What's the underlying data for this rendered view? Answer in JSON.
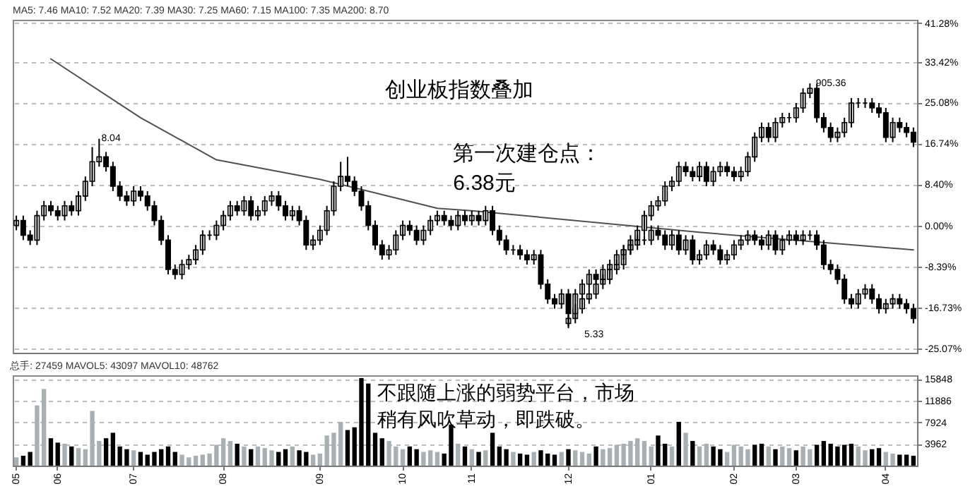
{
  "chart_data": [
    {
      "type": "candlestick",
      "title": "MA5: 7.46 MA10: 7.52 MA20: 7.39 MA30: 7.25 MA60: 7.15 MA100: 7.35 MA200: 8.70",
      "categories": [
        "05",
        null,
        null,
        null,
        null,
        null,
        "06",
        null,
        null,
        null,
        null,
        null,
        null,
        null,
        null,
        null,
        null,
        "07",
        null,
        null,
        null,
        null,
        null,
        null,
        null,
        null,
        null,
        null,
        null,
        null,
        "08",
        null,
        null,
        null,
        null,
        null,
        null,
        null,
        null,
        null,
        null,
        null,
        null,
        null,
        "09",
        null,
        null,
        null,
        null,
        null,
        null,
        null,
        null,
        null,
        null,
        null,
        "10",
        null,
        null,
        null,
        null,
        null,
        null,
        null,
        null,
        null,
        "11",
        null,
        null,
        null,
        null,
        null,
        null,
        null,
        null,
        null,
        null,
        null,
        null,
        null,
        "12",
        null,
        null,
        null,
        null,
        null,
        null,
        null,
        null,
        null,
        null,
        null,
        "01",
        null,
        null,
        null,
        null,
        null,
        null,
        null,
        null,
        null,
        null,
        null,
        "02",
        null,
        null,
        null,
        null,
        null,
        null,
        null,
        null,
        "03",
        null,
        null,
        null,
        null,
        null,
        null,
        null,
        null,
        null,
        null,
        null,
        null,
        "04",
        null,
        null,
        null,
        null
      ],
      "ylim": [
        -26,
        42
      ],
      "yticks": [
        {
          "value": 41.28,
          "label": "41.28%"
        },
        {
          "value": 33.42,
          "label": "33.42%"
        },
        {
          "value": 25.08,
          "label": "25.08%"
        },
        {
          "value": 16.74,
          "label": "16.74%"
        },
        {
          "value": 8.4,
          "label": "8.40%"
        },
        {
          "value": 0,
          "label": "0.00%"
        },
        {
          "value": -8.39,
          "label": "-8.39%"
        },
        {
          "value": -16.73,
          "label": "-16.73%"
        },
        {
          "value": -25.07,
          "label": "-25.07%"
        }
      ],
      "grid": "y",
      "tick_labels": "y",
      "annotations": [
        "创业板指数叠加",
        "第一次建仓点：",
        "6.38元",
        "8.04",
        "5.33",
        "905.36"
      ],
      "series": [
        {
          "type": "line",
          "color": "#505050",
          "values": [
            null,
            null,
            null,
            null,
            null,
            34,
            null,
            null,
            null,
            null,
            null,
            null,
            null,
            null,
            null,
            null,
            null,
            null,
            22,
            null,
            null,
            null,
            null,
            null,
            null,
            null,
            null,
            null,
            null,
            13.4,
            null,
            null,
            null,
            null,
            null,
            null,
            null,
            null,
            null,
            null,
            null,
            null,
            null,
            null,
            9.4,
            null,
            null,
            null,
            null,
            null,
            null,
            7,
            null,
            null,
            null,
            null,
            null,
            null,
            null,
            null,
            null,
            3.5,
            null,
            null,
            null,
            null,
            3,
            null,
            null,
            null,
            null,
            null,
            null,
            null,
            null,
            null,
            null,
            null,
            null,
            null,
            null,
            null,
            null,
            null,
            null,
            null,
            null,
            null,
            null,
            null,
            null,
            null,
            null,
            null,
            null,
            null,
            null,
            null,
            null,
            -1.4,
            null,
            null,
            null,
            null,
            null,
            null,
            null,
            null,
            null,
            null,
            null,
            null,
            null,
            null,
            null,
            null,
            null,
            null,
            null,
            null,
            null,
            null,
            null,
            null,
            null,
            null,
            null,
            null,
            null,
            null,
            -5
          ]
        },
        {
          "color": "#000000",
          "ohlc": [
            null,
            null,
            null,
            null,
            null,
            null,
            null,
            null,
            null,
            null,
            null,
            null,
            null,
            null,
            null,
            null,
            null,
            null,
            null,
            null,
            null,
            null,
            null,
            null,
            null,
            null,
            null,
            null,
            null,
            null,
            null,
            null,
            null,
            null,
            null,
            null,
            null,
            null,
            null,
            null,
            null,
            null,
            null,
            null,
            null,
            null,
            null,
            null,
            null,
            null,
            null,
            null,
            null,
            null,
            null,
            null,
            null,
            null,
            null,
            null,
            null,
            null,
            null,
            null,
            null,
            null,
            null,
            null,
            null,
            null,
            null,
            null,
            null,
            null,
            null,
            null,
            null,
            null,
            null,
            null,
            [
              -20,
              -18,
              -21,
              -19
            ],
            [
              -19,
              -16,
              -20,
              -17
            ],
            [
              -17,
              -14,
              -18,
              -15
            ],
            [
              -15,
              -13,
              -16,
              -14
            ],
            [
              -14,
              -11,
              -15,
              -12
            ],
            [
              -12,
              -10,
              -13,
              -11
            ],
            [
              -11,
              -8,
              -12,
              -9
            ],
            [
              -9,
              -7,
              -10,
              -8
            ],
            [
              -8,
              -4,
              -9,
              -5
            ],
            [
              -5,
              -2,
              -6,
              -3
            ],
            [
              -3,
              0,
              -4,
              -1
            ],
            [
              -1,
              3,
              -2,
              2
            ],
            [
              2,
              5,
              1,
              4
            ],
            [
              4,
              6,
              3,
              5
            ],
            [
              5,
              9,
              4,
              8
            ],
            [
              8,
              10,
              7,
              9
            ],
            [
              9,
              13,
              8,
              12
            ],
            [
              12,
              13,
              10,
              11
            ],
            [
              11,
              12,
              9,
              10
            ],
            [
              10,
              13,
              9,
              12
            ],
            [
              12,
              13,
              8,
              9
            ],
            [
              9,
              12,
              8,
              11
            ],
            [
              11,
              13,
              10,
              12
            ],
            [
              12,
              13,
              10,
              11
            ],
            [
              11,
              12,
              9,
              10
            ],
            [
              10,
              12,
              9,
              11
            ],
            [
              11,
              15,
              10,
              14
            ],
            [
              14,
              19,
              13,
              18
            ],
            [
              18,
              21,
              17,
              20
            ],
            [
              20,
              21,
              17,
              18
            ],
            [
              18,
              22,
              17,
              21
            ],
            [
              21,
              23,
              20,
              22
            ],
            [
              22,
              23,
              21,
              22
            ],
            [
              22,
              25,
              21,
              24
            ],
            [
              24,
              28,
              23,
              27
            ],
            [
              27,
              29,
              26,
              28
            ],
            [
              28,
              29,
              21,
              22
            ],
            [
              22,
              23,
              19,
              20
            ],
            [
              20,
              21,
              17,
              18
            ],
            [
              18,
              20,
              17,
              19
            ],
            [
              19,
              22,
              18,
              21
            ],
            [
              21,
              26,
              20,
              25
            ],
            [
              25,
              26,
              24,
              25
            ],
            [
              25,
              26,
              24,
              25
            ],
            [
              25,
              26,
              23,
              24
            ],
            [
              24,
              25,
              22,
              23
            ],
            [
              23,
              24,
              17,
              18
            ],
            [
              18,
              22,
              17,
              21
            ],
            [
              21,
              22,
              19,
              20
            ],
            [
              20,
              21,
              18,
              19
            ],
            [
              19,
              20,
              16,
              17
            ]
          ]
        },
        {
          "color": "#000000",
          "ohlc": [
            [
              0,
              2,
              -1,
              1
            ],
            [
              1,
              2,
              -3,
              -2
            ],
            [
              -2,
              -1,
              -4,
              -3
            ],
            [
              -3,
              3,
              -4,
              2
            ],
            [
              2,
              5,
              1,
              4
            ],
            [
              4,
              5,
              2,
              3
            ],
            [
              3,
              4,
              1,
              2
            ],
            [
              2,
              5,
              1,
              4
            ],
            [
              4,
              5,
              2,
              3
            ],
            [
              3,
              7,
              2,
              6
            ],
            [
              6,
              10,
              5,
              9
            ],
            [
              9,
              16,
              8,
              13
            ],
            [
              13,
              17.7,
              12,
              14
            ],
            [
              14,
              15,
              11,
              12
            ],
            [
              12,
              13,
              7,
              8
            ],
            [
              8,
              9,
              5,
              6
            ],
            [
              6,
              7,
              4,
              5
            ],
            [
              5,
              8,
              4,
              7
            ],
            [
              7,
              8,
              5,
              6
            ],
            [
              6,
              7,
              3,
              4
            ],
            [
              4,
              5,
              0,
              1
            ],
            [
              1,
              2,
              -4,
              -3
            ],
            [
              -3,
              -2,
              -10,
              -9
            ],
            [
              -9,
              -8,
              -11,
              -10
            ],
            [
              -10,
              -7,
              -11,
              -8
            ],
            [
              -8,
              -6,
              -9,
              -7
            ],
            [
              -7,
              -4,
              -8,
              -5
            ],
            [
              -5,
              -1,
              -6,
              -2
            ],
            [
              -2,
              -1,
              -3,
              -2
            ],
            [
              -2,
              1,
              -3,
              0
            ],
            [
              0,
              3,
              -1,
              2
            ],
            [
              2,
              5,
              1,
              4
            ],
            [
              4,
              5,
              2,
              3
            ],
            [
              3,
              6,
              2,
              5
            ],
            [
              5,
              6,
              1,
              2
            ],
            [
              2,
              4,
              1,
              3
            ],
            [
              3,
              6,
              2,
              5
            ],
            [
              5,
              7,
              4,
              6
            ],
            [
              6,
              7,
              3,
              4
            ],
            [
              4,
              5,
              1,
              2
            ],
            [
              2,
              4,
              1,
              3
            ],
            [
              3,
              4,
              0,
              1
            ],
            [
              1,
              2,
              -5,
              -4
            ],
            [
              -4,
              -2,
              -5,
              -3
            ],
            [
              -3,
              0,
              -4,
              -1
            ],
            [
              -1,
              4,
              -2,
              3
            ],
            [
              3,
              9,
              2,
              8
            ],
            [
              8,
              13,
              7,
              10
            ],
            [
              10,
              14,
              8,
              9
            ],
            [
              9,
              10,
              6,
              7
            ],
            [
              7,
              8,
              3,
              4
            ],
            [
              4,
              5,
              -1,
              0
            ],
            [
              0,
              1,
              -5,
              -4
            ],
            [
              -4,
              -3,
              -7,
              -6
            ],
            [
              -6,
              -4,
              -7,
              -5
            ],
            [
              -5,
              -1,
              -6,
              -2
            ],
            [
              -2,
              1,
              -3,
              0
            ],
            [
              0,
              1,
              -2,
              -1
            ],
            [
              -1,
              0,
              -4,
              -3
            ],
            [
              -3,
              0,
              -4,
              -1
            ],
            [
              -1,
              2,
              -2,
              1
            ],
            [
              1,
              3,
              0,
              2
            ],
            [
              2,
              3,
              0,
              1
            ],
            [
              1,
              2,
              -1,
              0
            ],
            [
              0,
              3,
              -1,
              2
            ],
            [
              2,
              3,
              0,
              1
            ],
            [
              1,
              3,
              0,
              2
            ],
            [
              2,
              3,
              0,
              1
            ],
            [
              1,
              4,
              0,
              3
            ],
            [
              3,
              4,
              -2,
              -1
            ],
            [
              -1,
              0,
              -4,
              -3
            ],
            [
              -3,
              -2,
              -6,
              -5
            ],
            [
              -5,
              -4,
              -6,
              -5
            ],
            [
              -5,
              -4,
              -7,
              -6
            ],
            [
              -6,
              -5,
              -8,
              -7
            ],
            [
              -7,
              -5,
              -8,
              -6
            ],
            [
              -6,
              -5,
              -13,
              -12
            ],
            [
              -12,
              -11,
              -16,
              -15
            ],
            [
              -15,
              -14,
              -17,
              -16
            ],
            [
              -16,
              -13,
              -17,
              -14
            ],
            [
              -14,
              -13,
              -20.6,
              -18
            ],
            [
              -18,
              -13,
              -19,
              -14
            ],
            [
              -14,
              -11,
              -15,
              -12
            ],
            [
              -12,
              -9,
              -13,
              -10
            ],
            [
              -10,
              -9,
              -12,
              -11
            ],
            [
              -11,
              -8,
              -12,
              -9
            ],
            [
              -9,
              -7,
              -10,
              -8
            ],
            [
              -8,
              -5,
              -9,
              -6
            ],
            [
              -6,
              -4,
              -7,
              -5
            ],
            [
              -5,
              -3,
              -6,
              -4
            ],
            [
              -4,
              -2,
              -5,
              -3
            ],
            [
              -3,
              -2,
              -4,
              -3
            ],
            [
              -3,
              0,
              -4,
              -1
            ],
            [
              -1,
              0,
              -3,
              -2
            ],
            [
              -2,
              -1,
              -5,
              -4
            ],
            [
              -4,
              -1,
              -5,
              -2
            ],
            [
              -2,
              -1,
              -6,
              -5
            ],
            [
              -5,
              -2,
              -6,
              -3
            ],
            [
              -3,
              -2,
              -8,
              -7
            ],
            [
              -7,
              -5,
              -8,
              -6
            ],
            [
              -6,
              -3,
              -7,
              -4
            ],
            [
              -4,
              -3,
              -6,
              -5
            ],
            [
              -5,
              -4,
              -8,
              -7
            ],
            [
              -7,
              -5,
              -8,
              -6
            ],
            [
              -6,
              -3,
              -7,
              -4
            ],
            [
              -4,
              -2,
              -5,
              -3
            ],
            [
              -3,
              -1,
              -4,
              -2
            ],
            [
              -2,
              -1,
              -4,
              -3
            ],
            [
              -3,
              -2,
              -5,
              -4
            ],
            [
              -4,
              -1,
              -5,
              -2
            ],
            [
              -2,
              -1,
              -6,
              -5
            ],
            [
              -5,
              -2,
              -6,
              -3
            ],
            [
              -3,
              -1,
              -4,
              -2
            ],
            [
              -2,
              -1,
              -4,
              -3
            ],
            [
              -3,
              -1,
              -4,
              -2
            ],
            [
              -2,
              -1,
              -3,
              -2
            ],
            [
              -2,
              -1,
              -5,
              -4
            ],
            [
              -4,
              -3,
              -9,
              -8
            ],
            [
              -8,
              -7,
              -10,
              -9
            ],
            [
              -9,
              -8,
              -12,
              -11
            ],
            [
              -11,
              -10,
              -16,
              -15
            ],
            [
              -15,
              -14,
              -17,
              -16
            ],
            [
              -16,
              -13,
              -17,
              -14
            ],
            [
              -14,
              -12,
              -15,
              -13
            ],
            [
              -13,
              -12,
              -16,
              -15
            ],
            [
              -15,
              -14,
              -18,
              -17
            ],
            [
              -17,
              -15,
              -18,
              -16
            ],
            [
              -16,
              -14,
              -17,
              -15
            ],
            [
              -15,
              -14,
              -17,
              -16
            ],
            [
              -16,
              -15,
              -18,
              -17
            ],
            [
              -17,
              -16,
              -20,
              -19
            ]
          ]
        }
      ]
    },
    {
      "type": "bar",
      "title": "总手: 27459 MAVOL5: 43097 MAVOL10: 48762",
      "colors": [
        "#a8b0b4",
        "#000000",
        "#000000",
        "#a8b0b4",
        "#a8b0b4",
        "#000000",
        "#000000",
        "#a8b0b4",
        "#000000",
        "#a8b0b4",
        "#a8b0b4",
        "#a8b0b4",
        "#a8b0b4",
        "#000000",
        "#000000",
        "#000000",
        "#000000",
        "#a8b0b4",
        "#000000",
        "#000000",
        "#000000",
        "#000000",
        "#000000",
        "#000000",
        "#a8b0b4",
        "#a8b0b4",
        "#a8b0b4",
        "#a8b0b4",
        "#a8b0b4",
        "#a8b0b4",
        "#a8b0b4",
        "#a8b0b4",
        "#000000",
        "#a8b0b4",
        "#000000",
        "#a8b0b4",
        "#a8b0b4",
        "#a8b0b4",
        "#000000",
        "#000000",
        "#a8b0b4",
        "#000000",
        "#000000",
        "#a8b0b4",
        "#a8b0b4",
        "#a8b0b4",
        "#a8b0b4",
        "#a8b0b4",
        "#000000",
        "#000000",
        "#000000",
        "#000000",
        "#000000",
        "#000000",
        "#a8b0b4",
        "#a8b0b4",
        "#a8b0b4",
        "#000000",
        "#000000",
        "#a8b0b4",
        "#a8b0b4",
        "#a8b0b4",
        "#000000",
        "#000000",
        "#a8b0b4",
        "#000000",
        "#a8b0b4",
        "#000000",
        "#a8b0b4",
        "#000000",
        "#000000",
        "#000000",
        "#a8b0b4",
        "#000000",
        "#000000",
        "#a8b0b4",
        "#000000",
        "#000000",
        "#000000",
        "#a8b0b4",
        "#000000",
        "#a8b0b4",
        "#a8b0b4",
        "#a8b0b4",
        "#000000",
        "#a8b0b4",
        "#a8b0b4",
        "#a8b0b4",
        "#a8b0b4",
        "#a8b0b4",
        "#a8b0b4",
        "#a8b0b4",
        "#a8b0b4",
        "#000000",
        "#000000",
        "#a8b0b4",
        "#000000",
        "#a8b0b4",
        "#000000",
        "#a8b0b4",
        "#a8b0b4",
        "#000000",
        "#000000",
        "#a8b0b4",
        "#a8b0b4",
        "#a8b0b4",
        "#a8b0b4",
        "#000000",
        "#000000",
        "#a8b0b4",
        "#000000",
        "#a8b0b4",
        "#a8b0b4",
        "#000000",
        "#a8b0b4",
        "#a8b0b4",
        "#000000",
        "#000000",
        "#000000",
        "#000000",
        "#000000",
        "#000000",
        "#a8b0b4",
        "#a8b0b4",
        "#000000",
        "#000000",
        "#a8b0b4",
        "#a8b0b4",
        "#000000",
        "#000000",
        "#000000"
      ],
      "categories": [
        "05",
        null,
        null,
        null,
        null,
        null,
        "06",
        null,
        null,
        null,
        null,
        null,
        null,
        null,
        null,
        null,
        null,
        "07",
        null,
        null,
        null,
        null,
        null,
        null,
        null,
        null,
        null,
        null,
        null,
        null,
        "08",
        null,
        null,
        null,
        null,
        null,
        null,
        null,
        null,
        null,
        null,
        null,
        null,
        null,
        "09",
        null,
        null,
        null,
        null,
        null,
        null,
        null,
        null,
        null,
        null,
        null,
        "10",
        null,
        null,
        null,
        null,
        null,
        null,
        null,
        null,
        null,
        "11",
        null,
        null,
        null,
        null,
        null,
        null,
        null,
        null,
        null,
        null,
        null,
        null,
        null,
        "12",
        null,
        null,
        null,
        null,
        null,
        null,
        null,
        null,
        null,
        null,
        null,
        "01",
        null,
        null,
        null,
        null,
        null,
        null,
        null,
        null,
        null,
        null,
        null,
        "02",
        null,
        null,
        null,
        null,
        null,
        null,
        null,
        null,
        "03",
        null,
        null,
        null,
        null,
        null,
        null,
        null,
        null,
        null,
        null,
        null,
        null,
        "04",
        null,
        null,
        null,
        null
      ],
      "values": [
        1500,
        1800,
        2500,
        11000,
        14000,
        5000,
        4200,
        4000,
        3500,
        3200,
        3000,
        10000,
        4500,
        5000,
        6000,
        3500,
        3000,
        2800,
        2500,
        2000,
        2500,
        3000,
        3500,
        2500,
        2000,
        1500,
        1800,
        2000,
        2200,
        3800,
        5000,
        4500,
        4000,
        3500,
        3000,
        3500,
        3200,
        2800,
        2500,
        3000,
        3500,
        2800,
        2500,
        2000,
        2200,
        5500,
        6000,
        8000,
        6500,
        7000,
        16000,
        15000,
        6000,
        5000,
        4500,
        3500,
        3000,
        3500,
        3000,
        2500,
        2800,
        2500,
        2200,
        7500,
        4000,
        3500,
        3000,
        2500,
        2800,
        6000,
        3500,
        3000,
        2500,
        2200,
        2000,
        2500,
        2800,
        2200,
        2000,
        2500,
        3000,
        2800,
        2500,
        2200,
        3500,
        3000,
        3200,
        3800,
        4000,
        4500,
        5000,
        4500,
        3500,
        5500,
        4000,
        3500,
        8000,
        6000,
        4500,
        3500,
        4000,
        3500,
        3000,
        2500,
        3800,
        3500,
        3000,
        3800,
        4000,
        3500,
        3000,
        3500,
        3200,
        2800,
        3500,
        3000,
        3800,
        4500,
        4000,
        3500,
        3800,
        4000,
        3500,
        2800,
        3000,
        3200,
        2500,
        2200,
        2000,
        2000,
        1800
      ],
      "ylim": [
        0,
        16500
      ],
      "yticks": [
        3962,
        7924,
        11886,
        15848
      ],
      "grid": "y",
      "annotations": [
        "不跟随上涨的弱势平台，市场",
        "稍有风吹草动，即跌破。"
      ]
    }
  ]
}
